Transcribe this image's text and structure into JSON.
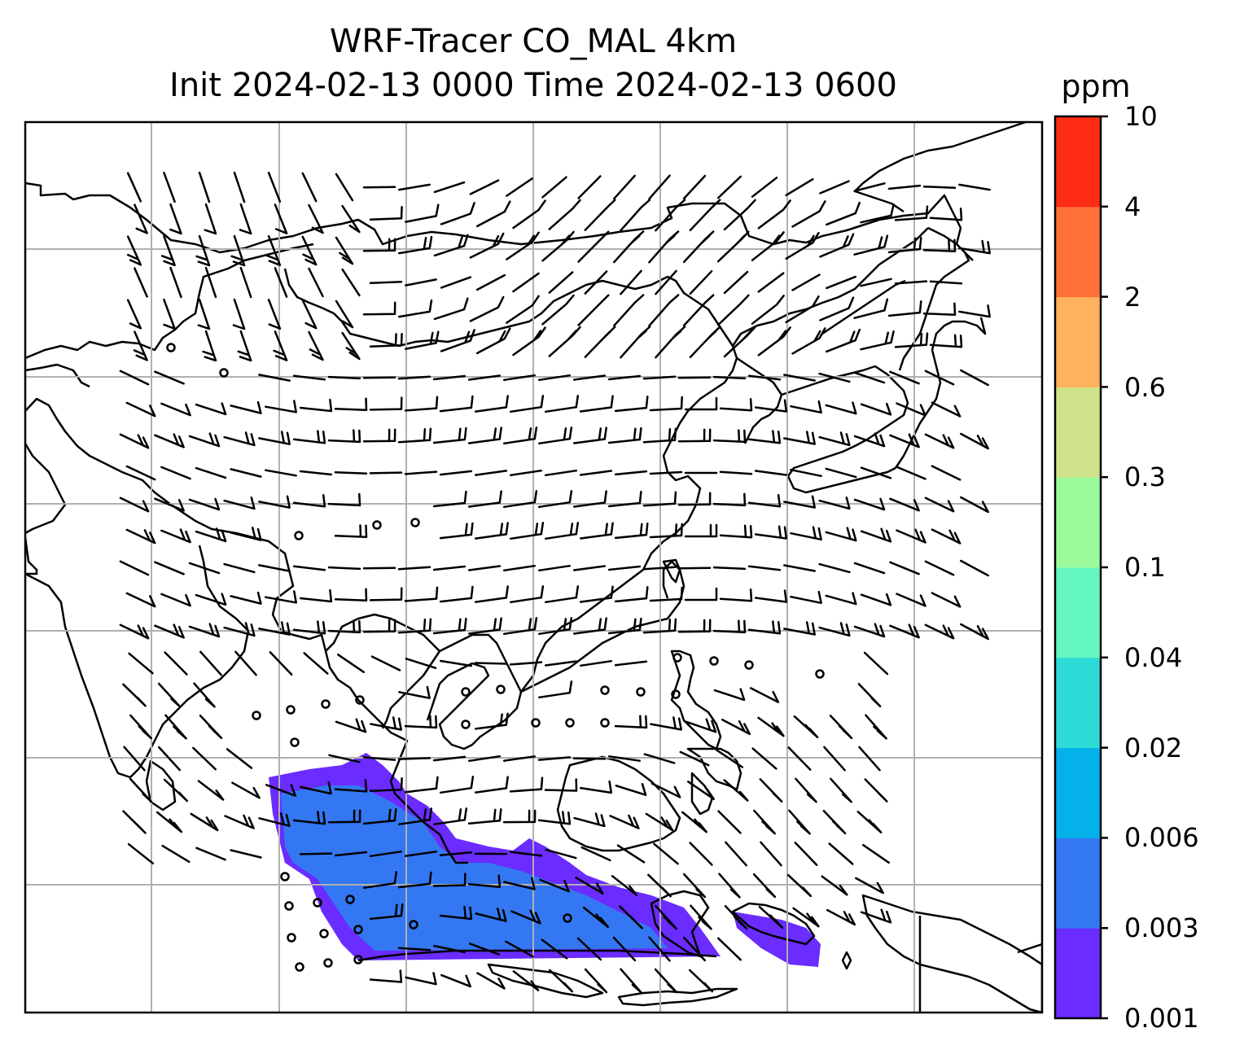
{
  "title_line1": "WRF-Tracer CO_MAL 4km",
  "title_line2": "Init 2024-02-13 0000 Time 2024-02-13 0600",
  "colorbar": {
    "units": "ppm",
    "levels": [
      "0.001",
      "0.003",
      "0.006",
      "0.02",
      "0.04",
      "0.1",
      "0.3",
      "0.6",
      "2",
      "4",
      "10"
    ],
    "colors": [
      "#6a2cff",
      "#3378f2",
      "#05b1ea",
      "#2ddbd6",
      "#64f7c0",
      "#9cfb9b",
      "#cfe289",
      "#ffb15e",
      "#ff7139",
      "#ff2c14"
    ]
  },
  "map_style": {
    "coastline_color": "#000000",
    "gridline_color": "#b0b0b0",
    "barb_color": "#000000",
    "plume_primary_color": "#3378f2",
    "plume_edge_color": "#6a2cff"
  }
}
